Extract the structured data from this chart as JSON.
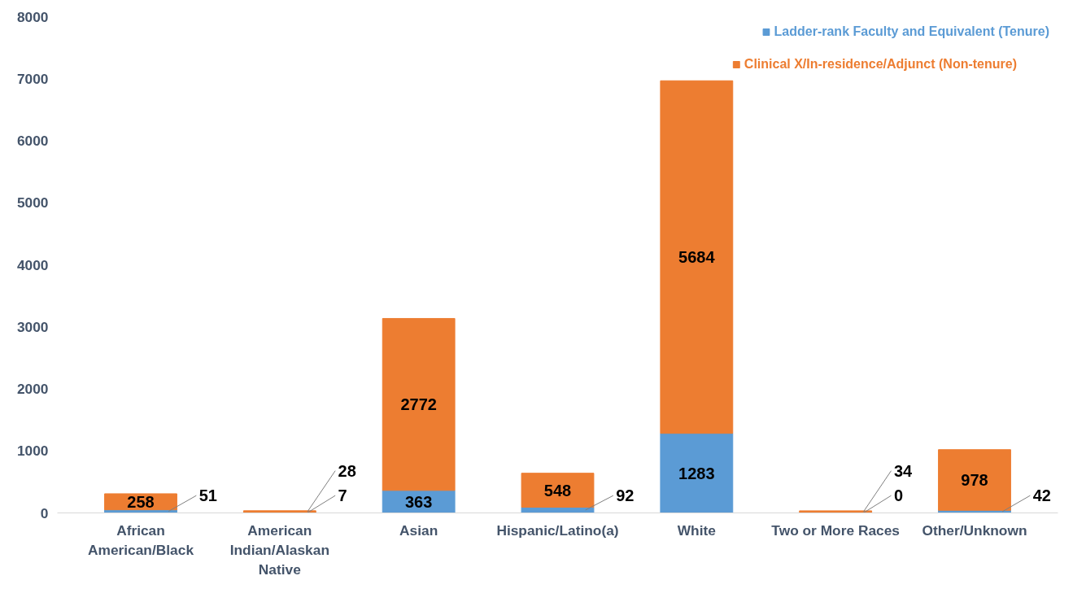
{
  "chart_data": {
    "type": "bar",
    "stacked": true,
    "categories": [
      "African American/Black",
      "American Indian/Alaskan Native",
      "Asian",
      "Hispanic/Latino(a)",
      "White",
      "Two or More Races",
      "Other/Unknown"
    ],
    "series": [
      {
        "name": "Ladder-rank Faculty and Equivalent (Tenure)",
        "color": "#5b9bd5",
        "values": [
          51,
          7,
          363,
          92,
          1283,
          0,
          42
        ]
      },
      {
        "name": "Clinical X/In-residence/Adjunct (Non-tenure)",
        "color": "#ed7d31",
        "values": [
          258,
          28,
          2772,
          548,
          5684,
          34,
          978
        ]
      }
    ],
    "ylim": [
      0,
      8000
    ],
    "yticks": [
      0,
      1000,
      2000,
      3000,
      4000,
      5000,
      6000,
      7000,
      8000
    ],
    "grid": false,
    "legend": "top right",
    "data_labels": true
  }
}
